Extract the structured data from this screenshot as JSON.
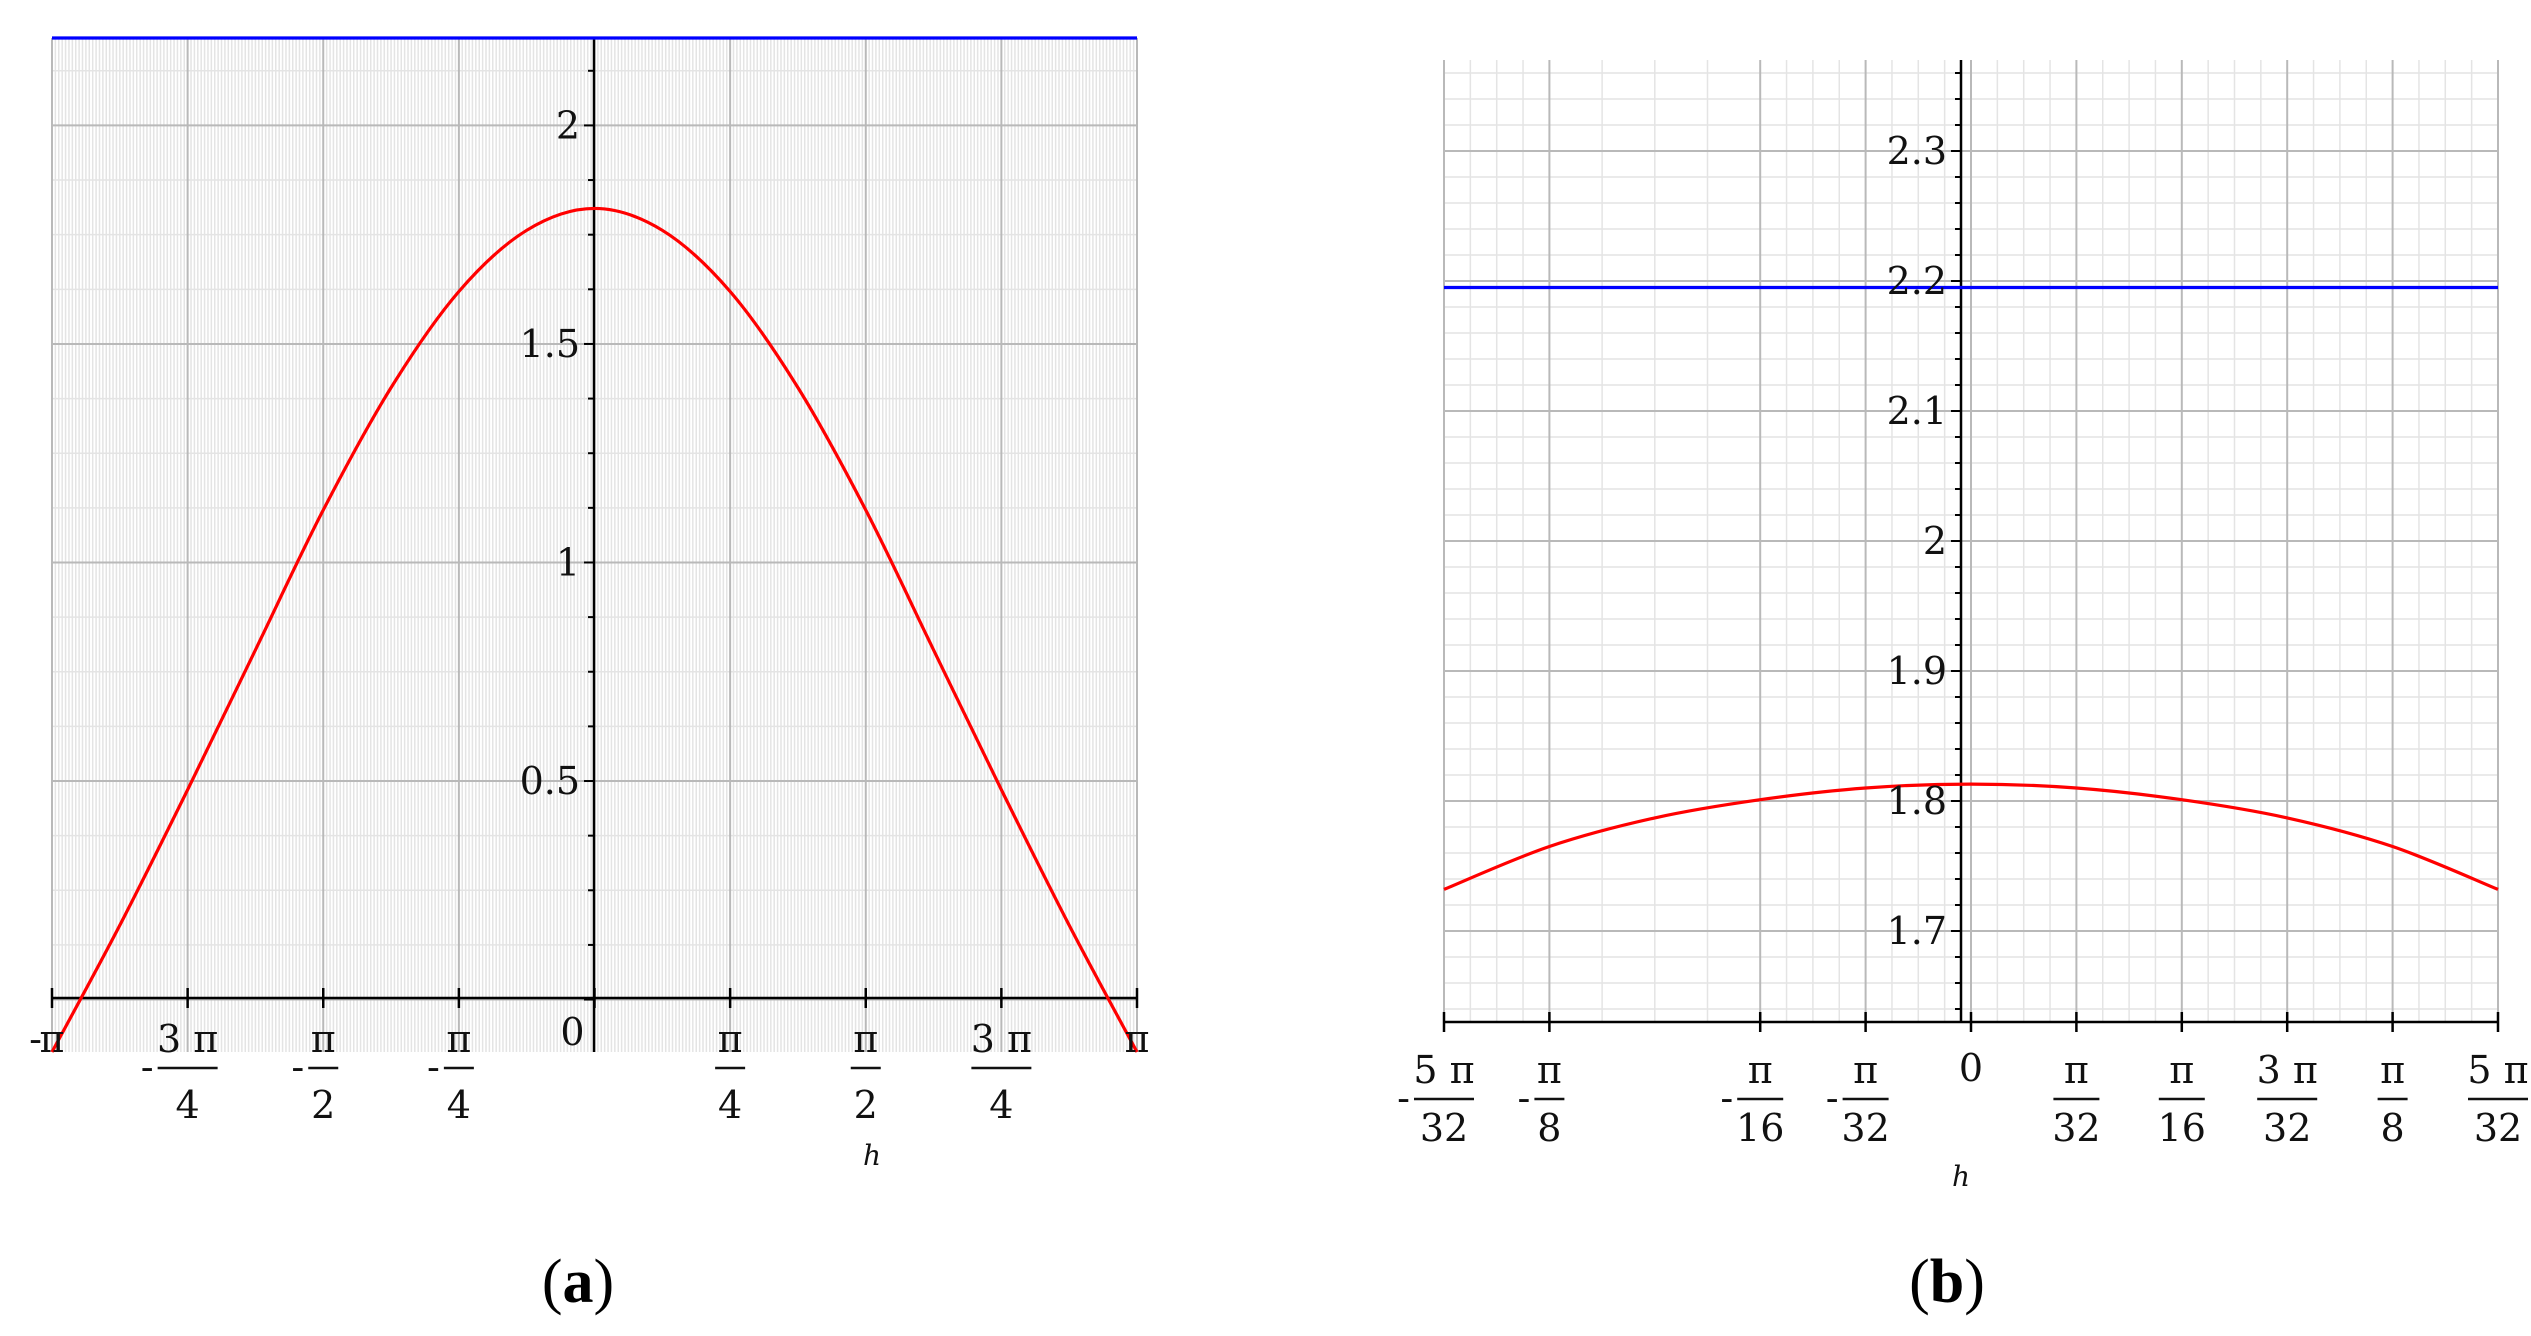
{
  "chart_data": [
    {
      "type": "line",
      "caption": "a",
      "xlabel": "h",
      "ylabel": "",
      "xlim_pi": [
        -1,
        1
      ],
      "ylim": [
        -0.12,
        2.2
      ],
      "grid": true,
      "x_ticks": [
        {
          "pos_pi": -1,
          "sign": "-",
          "num": "π",
          "den": ""
        },
        {
          "pos_pi": -0.75,
          "sign": "-",
          "num": "3 π",
          "den": "4"
        },
        {
          "pos_pi": -0.5,
          "sign": "-",
          "num": "π",
          "den": "2"
        },
        {
          "pos_pi": -0.25,
          "sign": "-",
          "num": "π",
          "den": "4"
        },
        {
          "pos_pi": 0,
          "sign": "",
          "num": "0",
          "den": ""
        },
        {
          "pos_pi": 0.25,
          "sign": "",
          "num": "π",
          "den": "4"
        },
        {
          "pos_pi": 0.5,
          "sign": "",
          "num": "π",
          "den": "2"
        },
        {
          "pos_pi": 0.75,
          "sign": "",
          "num": "3 π",
          "den": "4"
        },
        {
          "pos_pi": 1,
          "sign": "",
          "num": "π",
          "den": ""
        }
      ],
      "y_ticks": [
        {
          "value": 0.5,
          "label": "0.5"
        },
        {
          "value": 1,
          "label": "1"
        },
        {
          "value": 1.5,
          "label": "1.5"
        },
        {
          "value": 2,
          "label": "2"
        }
      ],
      "series": [
        {
          "color": "#ff0000",
          "x_pi": [
            -1,
            -0.875,
            -0.75,
            -0.625,
            -0.5,
            -0.375,
            -0.25,
            -0.125,
            0,
            0.125,
            0.25,
            0.375,
            0.5,
            0.625,
            0.75,
            0.875,
            1
          ],
          "y": [
            -0.12,
            0.17,
            0.48,
            0.8,
            1.12,
            1.4,
            1.62,
            1.76,
            1.81,
            1.76,
            1.62,
            1.4,
            1.12,
            0.8,
            0.48,
            0.17,
            -0.12
          ]
        },
        {
          "color": "#0000ff",
          "x_pi": [
            -1,
            1
          ],
          "y": [
            2.2,
            2.2
          ]
        }
      ]
    },
    {
      "type": "line",
      "caption": "b",
      "xlabel": "h",
      "ylabel": "",
      "xlim_pi": [
        -0.15625,
        0.15625
      ],
      "ylim": [
        1.63,
        2.37
      ],
      "grid": true,
      "x_ticks": [
        {
          "pos_pi": -0.15625,
          "sign": "-",
          "num": "5 π",
          "den": "32"
        },
        {
          "pos_pi": -0.125,
          "sign": "-",
          "num": "π",
          "den": "8"
        },
        {
          "pos_pi": -0.0625,
          "sign": "-",
          "num": "π",
          "den": "16"
        },
        {
          "pos_pi": -0.03125,
          "sign": "-",
          "num": "π",
          "den": "32"
        },
        {
          "pos_pi": 0,
          "sign": "",
          "num": "0",
          "den": ""
        },
        {
          "pos_pi": 0.03125,
          "sign": "",
          "num": "π",
          "den": "32"
        },
        {
          "pos_pi": 0.0625,
          "sign": "",
          "num": "π",
          "den": "16"
        },
        {
          "pos_pi": 0.09375,
          "sign": "",
          "num": "3 π",
          "den": "32"
        },
        {
          "pos_pi": 0.125,
          "sign": "",
          "num": "π",
          "den": "8"
        },
        {
          "pos_pi": 0.15625,
          "sign": "",
          "num": "5 π",
          "den": "32"
        }
      ],
      "y_ticks": [
        {
          "value": 1.7,
          "label": "1.7"
        },
        {
          "value": 1.8,
          "label": "1.8"
        },
        {
          "value": 1.9,
          "label": "1.9"
        },
        {
          "value": 2,
          "label": "2"
        },
        {
          "value": 2.1,
          "label": "2.1"
        },
        {
          "value": 2.2,
          "label": "2.2"
        },
        {
          "value": 2.3,
          "label": "2.3"
        }
      ],
      "series": [
        {
          "color": "#ff0000",
          "x_pi": [
            -0.15625,
            -0.125,
            -0.09375,
            -0.0625,
            -0.03125,
            0,
            0.03125,
            0.0625,
            0.09375,
            0.125,
            0.15625
          ],
          "y": [
            1.732,
            1.765,
            1.787,
            1.801,
            1.81,
            1.813,
            1.81,
            1.801,
            1.787,
            1.765,
            1.732
          ]
        },
        {
          "color": "#0000ff",
          "x_pi": [
            -0.15625,
            0.15625
          ],
          "y": [
            2.195,
            2.195
          ]
        }
      ]
    }
  ]
}
